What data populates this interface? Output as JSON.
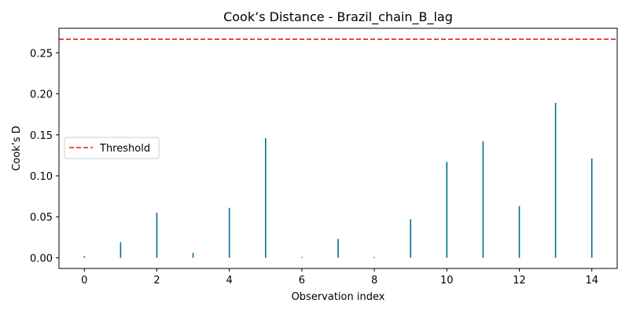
{
  "chart_data": {
    "type": "bar",
    "title": "Cook’s Distance - Brazil_chain_B_lag",
    "xlabel": "Observation index",
    "ylabel": "Cook’s D",
    "x": [
      0,
      1,
      2,
      3,
      4,
      5,
      6,
      7,
      8,
      9,
      10,
      11,
      12,
      13,
      14
    ],
    "values": [
      0.002,
      0.019,
      0.055,
      0.006,
      0.061,
      0.146,
      0.001,
      0.023,
      0.001,
      0.047,
      0.117,
      0.142,
      0.063,
      0.189,
      0.121
    ],
    "threshold": 0.2667,
    "xlim": [
      -0.7,
      14.7
    ],
    "ylim": [
      -0.013,
      0.28
    ],
    "xticks": [
      0,
      2,
      4,
      6,
      8,
      10,
      12,
      14
    ],
    "yticks": [
      0.0,
      0.05,
      0.1,
      0.15,
      0.2,
      0.25
    ],
    "ytick_labels": [
      "0.00",
      "0.05",
      "0.10",
      "0.15",
      "0.20",
      "0.25"
    ],
    "legend": {
      "label": "Threshold",
      "placement": "center-left"
    },
    "grid": false,
    "colors": {
      "stem": "#1f77b4",
      "stem_dark": "#006e8a",
      "threshold": "#e41a1c"
    }
  }
}
